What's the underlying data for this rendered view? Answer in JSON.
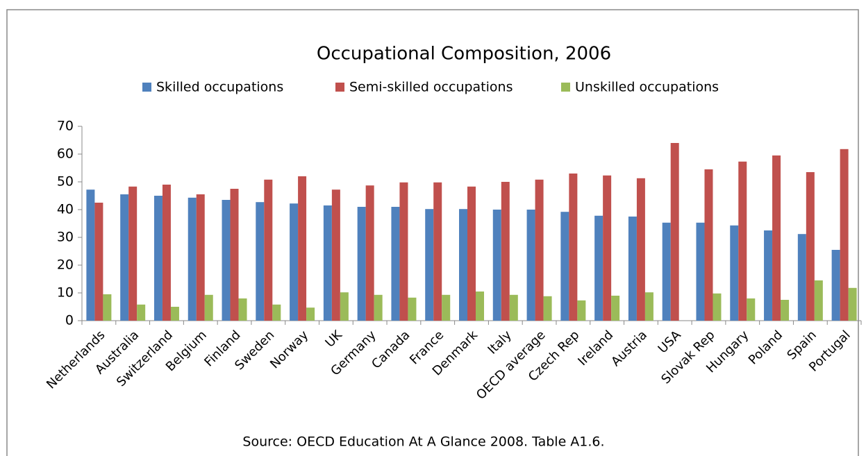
{
  "chart_data": {
    "type": "bar",
    "title": "Occupational Composition, 2006",
    "categories": [
      "Netherlands",
      "Australia",
      "Switzerland",
      "Belgium",
      "Finland",
      "Sweden",
      "Norway",
      "UK",
      "Germany",
      "Canada",
      "France",
      "Denmark",
      "Italy",
      "OECD average",
      "Czech Rep",
      "Ireland",
      "Austria",
      "USA",
      "Slovak Rep",
      "Hungary",
      "Poland",
      "Spain",
      "Portugal"
    ],
    "series": [
      {
        "name": "Skilled occupations",
        "color": "#4f81bd",
        "values": [
          47.2,
          45.5,
          45,
          44.3,
          43.5,
          42.7,
          42.2,
          41.5,
          41,
          41,
          40.2,
          40.2,
          40,
          40,
          39.2,
          37.8,
          37.5,
          35.3,
          35.3,
          34.3,
          32.5,
          31.2,
          25.5
        ]
      },
      {
        "name": "Semi-skilled occupations",
        "color": "#c0504d",
        "values": [
          42.5,
          48.3,
          49,
          45.5,
          47.5,
          50.8,
          52,
          47.2,
          48.7,
          49.8,
          49.8,
          48.3,
          50,
          50.8,
          53,
          52.3,
          51.3,
          64,
          54.5,
          57.3,
          59.5,
          53.5,
          61.8
        ]
      },
      {
        "name": "Unskilled occupations",
        "color": "#9bbb59",
        "values": [
          9.5,
          5.8,
          5,
          9.3,
          8,
          5.8,
          4.7,
          10.2,
          9.3,
          8.3,
          9.3,
          10.5,
          9.3,
          8.8,
          7.3,
          9,
          10.2,
          null,
          9.8,
          8,
          7.5,
          14.5,
          11.8
        ]
      }
    ],
    "ylim": [
      0,
      70
    ],
    "yticks": [
      0,
      10,
      20,
      30,
      40,
      50,
      60,
      70
    ],
    "note": "Source: OECD Education At A Glance 2008. Table A1.6."
  }
}
